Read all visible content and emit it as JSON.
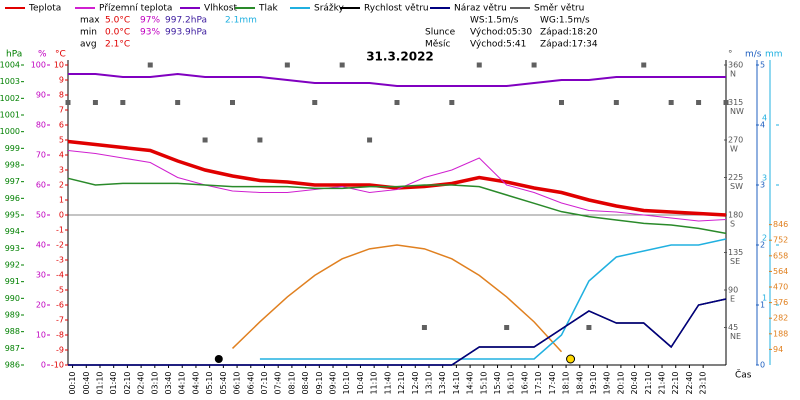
{
  "header": {
    "legend": [
      "Teplota",
      "Přízemní teplota",
      "Vlhkost",
      "Tlak",
      "Srážky",
      "Rychlost větru",
      "Náraz větru",
      "Směr větru"
    ],
    "stats": [
      [
        "max",
        "5.0°C",
        "97%",
        "997.2hPa",
        "2.1mm"
      ],
      [
        "min",
        "0.0°C",
        "93%",
        "993.9hPa"
      ],
      [
        "avg",
        "2.1°C"
      ]
    ],
    "wind": [
      "WS:1.5m/s",
      "WG:1.5m/s"
    ],
    "sun": [
      "Slunce",
      "Východ:05:30",
      "Západ:18:20"
    ],
    "moon": [
      "Měsíc",
      "Východ:5:41",
      "Západ:17:34"
    ]
  },
  "chart_data": {
    "type": "line",
    "title": "31.3.2022",
    "xlabel": "Čas",
    "units": {
      "y": "°C",
      "y2": "%",
      "y3": "hPa",
      "y4": "m/s",
      "y5": "mm",
      "y7": "°"
    },
    "x": [
      0,
      1,
      2,
      3,
      4,
      5,
      6,
      7,
      8,
      9,
      10,
      11,
      12,
      13,
      14,
      15,
      16,
      17,
      18,
      19,
      20,
      21,
      22,
      23,
      24
    ],
    "xlim": [
      0,
      24
    ],
    "categories": [
      "00:10",
      "00:40",
      "01:10",
      "01:40",
      "02:10",
      "02:40",
      "03:10",
      "03:40",
      "04:10",
      "04:40",
      "05:10",
      "05:40",
      "06:10",
      "06:40",
      "07:10",
      "07:40",
      "08:10",
      "08:40",
      "09:10",
      "09:40",
      "10:10",
      "10:40",
      "11:10",
      "11:40",
      "12:10",
      "12:40",
      "13:10",
      "13:40",
      "14:10",
      "14:40",
      "15:10",
      "15:40",
      "16:10",
      "16:40",
      "17:10",
      "17:40",
      "18:10",
      "18:40",
      "19:10",
      "19:40",
      "20:10",
      "20:40",
      "21:10",
      "21:40",
      "22:10",
      "22:40",
      "23:10"
    ],
    "ylim": [
      -10,
      10
    ],
    "yticks": [
      10,
      9,
      8,
      7,
      6,
      5,
      4,
      3,
      2,
      1,
      0,
      -1,
      -2,
      -3,
      -4,
      -5,
      -6,
      -7,
      -8,
      -9,
      -10
    ],
    "y2lim": [
      0,
      100
    ],
    "y2ticks": [
      100,
      90,
      80,
      70,
      60,
      50,
      40,
      30,
      20,
      10,
      0
    ],
    "y3lim": [
      986,
      1004
    ],
    "y3ticks": [
      1004,
      1003,
      1002,
      1001,
      1000,
      999,
      998,
      997,
      996,
      995,
      994,
      993,
      992,
      991,
      990,
      989,
      988,
      987,
      986
    ],
    "y4lim": [
      0,
      5
    ],
    "y4ticks": [
      5,
      4,
      3,
      2,
      1,
      0
    ],
    "y5lim": [
      0,
      5
    ],
    "y5ticks": [
      5,
      4,
      3,
      2,
      1,
      0
    ],
    "y6lim": [
      0,
      1808
    ],
    "y6ticks": [
      846,
      752,
      658,
      564,
      470,
      376,
      282,
      188,
      94
    ],
    "y7lim": [
      0,
      360
    ],
    "y7ticks": [
      360,
      315,
      270,
      225,
      180,
      135,
      90,
      45
    ],
    "y7tick_names": [
      "N",
      "NW",
      "W",
      "SW",
      "S",
      "SE",
      "E",
      "NE"
    ],
    "series": [
      {
        "name": "Teplota",
        "color": "#e00000",
        "axis": "y",
        "width": 3.5,
        "values": [
          4.9,
          4.7,
          4.5,
          4.3,
          3.6,
          3.0,
          2.6,
          2.3,
          2.2,
          2.0,
          2.0,
          2.0,
          1.8,
          1.9,
          2.1,
          2.5,
          2.2,
          1.8,
          1.5,
          1.0,
          0.6,
          0.3,
          0.2,
          0.1,
          0.0
        ]
      },
      {
        "name": "Přízemní teplota",
        "color": "#d020d0",
        "axis": "y",
        "width": 1,
        "values": [
          4.3,
          4.1,
          3.8,
          3.5,
          2.5,
          2.0,
          1.6,
          1.5,
          1.5,
          1.7,
          1.9,
          1.5,
          1.7,
          2.5,
          3.0,
          3.8,
          2.0,
          1.5,
          0.8,
          0.3,
          0.2,
          0.0,
          -0.2,
          -0.4,
          -0.3
        ]
      },
      {
        "name": "Vlhkost",
        "color": "#8000c0",
        "axis": "y2",
        "width": 2,
        "values": [
          97,
          97,
          96,
          96,
          97,
          96,
          96,
          96,
          95,
          94,
          94,
          94,
          93,
          93,
          93,
          93,
          93,
          94,
          95,
          95,
          96,
          96,
          96,
          96,
          96
        ]
      },
      {
        "name": "Tlak",
        "color": "#2a8a2a",
        "axis": "y3",
        "width": 1.5,
        "values": [
          997.2,
          996.8,
          996.9,
          996.9,
          996.9,
          996.8,
          996.7,
          996.7,
          996.7,
          996.6,
          996.6,
          996.7,
          996.7,
          996.8,
          996.8,
          996.7,
          996.2,
          995.7,
          995.2,
          994.9,
          994.7,
          994.5,
          994.4,
          994.2,
          993.9
        ]
      },
      {
        "name": "Srážky",
        "color": "#20b0e0",
        "axis": "y5",
        "width": 1.5,
        "values": [
          null,
          null,
          null,
          null,
          null,
          null,
          null,
          0.1,
          0.1,
          0.1,
          0.1,
          0.1,
          0.1,
          0.1,
          0.1,
          0.1,
          0.1,
          0.1,
          0.5,
          1.4,
          1.8,
          1.9,
          2.0,
          2.0,
          2.1
        ]
      },
      {
        "name": "Rychlost větru",
        "color": "#000000",
        "axis": "y4",
        "width": 1.5,
        "values": [
          0,
          0,
          0,
          0,
          0,
          0,
          0,
          0,
          0,
          0,
          0,
          0,
          0,
          0,
          0,
          0.3,
          0.3,
          0.3,
          0.6,
          0.9,
          0.7,
          0.7,
          0.3,
          1.0,
          1.1
        ]
      },
      {
        "name": "Náraz větru",
        "color": "#000080",
        "axis": "y4",
        "width": 1.5,
        "values": [
          0,
          0,
          0,
          0,
          0,
          0,
          0,
          0,
          0,
          0,
          0,
          0,
          0,
          0,
          0,
          0.3,
          0.3,
          0.3,
          0.6,
          0.9,
          0.7,
          0.7,
          0.3,
          1.0,
          1.1
        ]
      },
      {
        "name": "Směr větru",
        "color": "#606060",
        "axis": "y7",
        "marker": true,
        "values": [
          315,
          315,
          315,
          360,
          315,
          270,
          315,
          270,
          360,
          315,
          360,
          270,
          315,
          45,
          315,
          360,
          45,
          360,
          315,
          45,
          315,
          360,
          315,
          315,
          315
        ]
      }
    ],
    "sun_curve": {
      "color": "#e08020",
      "axis": "y6",
      "values": [
        null,
        null,
        null,
        null,
        null,
        null,
        100,
        260,
        410,
        540,
        640,
        700,
        723,
        700,
        640,
        540,
        410,
        260,
        80,
        null,
        null,
        null,
        null,
        null,
        null
      ]
    }
  }
}
